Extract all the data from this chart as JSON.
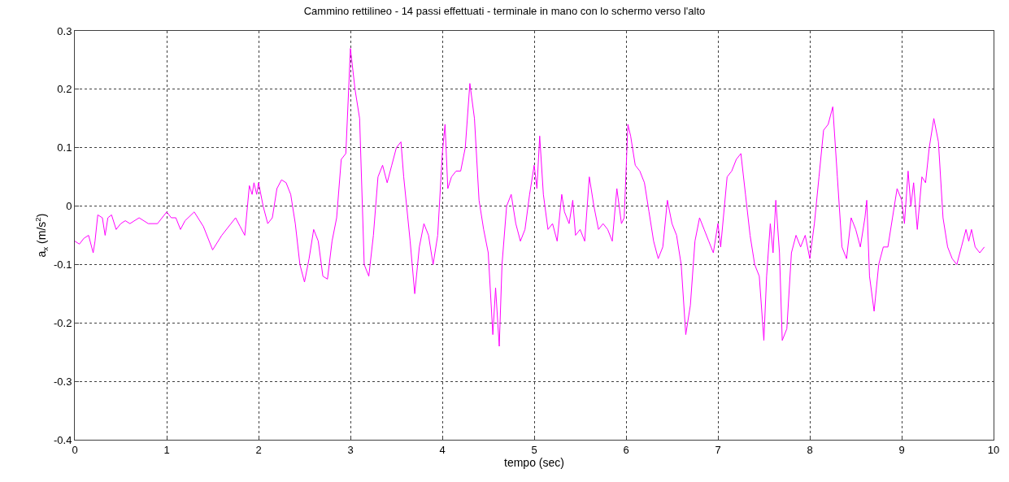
{
  "chart_data": {
    "type": "line",
    "title": "Cammino rettilineo - 14 passi effettuati - terminale in mano con lo schermo verso l'alto",
    "xlabel": "tempo (sec)",
    "ylabel": "a$_{x}$ (m/s$^{2}$)",
    "xlim": [
      0,
      10
    ],
    "xticks": [
      0,
      1,
      2,
      3,
      4,
      5,
      6,
      7,
      8,
      9,
      10
    ],
    "ylim": [
      -0.4,
      0.3
    ],
    "yticks": [
      -0.4,
      -0.3,
      -0.2,
      -0.1,
      0,
      0.1,
      0.2,
      0.3
    ],
    "grid": true,
    "legend": false,
    "line_style": "solid",
    "marker": "none",
    "series": [
      {
        "color": "#ff00ff",
        "x": [
          0,
          0.05,
          0.1,
          0.15,
          0.2,
          0.22,
          0.25,
          0.3,
          0.33,
          0.36,
          0.4,
          0.45,
          0.5,
          0.55,
          0.6,
          0.7,
          0.8,
          0.9,
          1.0,
          1.05,
          1.1,
          1.15,
          1.2,
          1.3,
          1.4,
          1.5,
          1.6,
          1.7,
          1.75,
          1.8,
          1.85,
          1.9,
          1.93,
          1.95,
          1.98,
          2.0,
          2.05,
          2.1,
          2.15,
          2.2,
          2.25,
          2.3,
          2.35,
          2.4,
          2.45,
          2.5,
          2.55,
          2.6,
          2.65,
          2.7,
          2.75,
          2.8,
          2.85,
          2.9,
          2.95,
          3.0,
          3.05,
          3.1,
          3.15,
          3.2,
          3.25,
          3.3,
          3.35,
          3.4,
          3.45,
          3.5,
          3.55,
          3.58,
          3.65,
          3.7,
          3.75,
          3.8,
          3.85,
          3.9,
          3.95,
          4.0,
          4.03,
          4.06,
          4.1,
          4.15,
          4.2,
          4.25,
          4.3,
          4.35,
          4.4,
          4.45,
          4.5,
          4.55,
          4.58,
          4.62,
          4.65,
          4.7,
          4.75,
          4.8,
          4.85,
          4.9,
          4.95,
          5.0,
          5.03,
          5.06,
          5.1,
          5.15,
          5.2,
          5.25,
          5.3,
          5.33,
          5.38,
          5.42,
          5.45,
          5.5,
          5.55,
          5.6,
          5.65,
          5.7,
          5.75,
          5.8,
          5.85,
          5.9,
          5.95,
          5.98,
          6.02,
          6.05,
          6.1,
          6.15,
          6.2,
          6.25,
          6.3,
          6.35,
          6.4,
          6.45,
          6.5,
          6.55,
          6.6,
          6.65,
          6.7,
          6.75,
          6.8,
          6.85,
          6.9,
          6.95,
          7.0,
          7.03,
          7.1,
          7.15,
          7.2,
          7.25,
          7.3,
          7.35,
          7.4,
          7.45,
          7.5,
          7.53,
          7.57,
          7.6,
          7.63,
          7.67,
          7.7,
          7.75,
          7.8,
          7.85,
          7.9,
          7.95,
          8.0,
          8.05,
          8.1,
          8.15,
          8.2,
          8.25,
          8.3,
          8.35,
          8.4,
          8.45,
          8.5,
          8.55,
          8.6,
          8.62,
          8.65,
          8.7,
          8.75,
          8.8,
          8.85,
          8.9,
          8.95,
          9.0,
          9.03,
          9.07,
          9.1,
          9.13,
          9.17,
          9.22,
          9.26,
          9.3,
          9.35,
          9.4,
          9.45,
          9.5,
          9.55,
          9.6,
          9.65,
          9.7,
          9.73,
          9.76,
          9.8,
          9.85,
          9.9
        ],
        "values": [
          -0.06,
          -0.065,
          -0.055,
          -0.05,
          -0.08,
          -0.06,
          -0.015,
          -0.02,
          -0.05,
          -0.02,
          -0.015,
          -0.04,
          -0.03,
          -0.025,
          -0.03,
          -0.02,
          -0.03,
          -0.03,
          -0.01,
          -0.02,
          -0.02,
          -0.04,
          -0.025,
          -0.01,
          -0.035,
          -0.075,
          -0.05,
          -0.03,
          -0.02,
          -0.035,
          -0.05,
          0.035,
          0.02,
          0.04,
          0.02,
          0.04,
          0.0,
          -0.03,
          -0.02,
          0.03,
          0.045,
          0.04,
          0.02,
          -0.03,
          -0.1,
          -0.13,
          -0.09,
          -0.04,
          -0.06,
          -0.12,
          -0.125,
          -0.06,
          -0.02,
          0.08,
          0.09,
          0.27,
          0.2,
          0.15,
          -0.1,
          -0.12,
          -0.05,
          0.05,
          0.07,
          0.04,
          0.07,
          0.1,
          0.11,
          0.05,
          -0.06,
          -0.15,
          -0.07,
          -0.03,
          -0.05,
          -0.1,
          -0.05,
          0.09,
          0.14,
          0.03,
          0.05,
          0.06,
          0.06,
          0.1,
          0.21,
          0.15,
          0.01,
          -0.04,
          -0.08,
          -0.22,
          -0.14,
          -0.24,
          -0.1,
          0.0,
          0.02,
          -0.03,
          -0.06,
          -0.04,
          0.02,
          0.07,
          0.03,
          0.12,
          0.02,
          -0.04,
          -0.03,
          -0.06,
          0.02,
          -0.01,
          -0.03,
          0.01,
          -0.05,
          -0.04,
          -0.06,
          0.05,
          0.0,
          -0.04,
          -0.03,
          -0.04,
          -0.06,
          0.03,
          -0.03,
          -0.02,
          0.14,
          0.12,
          0.07,
          0.06,
          0.04,
          -0.01,
          -0.06,
          -0.09,
          -0.07,
          0.01,
          -0.03,
          -0.05,
          -0.1,
          -0.22,
          -0.17,
          -0.06,
          -0.02,
          -0.04,
          -0.06,
          -0.08,
          -0.03,
          -0.07,
          0.05,
          0.06,
          0.08,
          0.09,
          0.02,
          -0.05,
          -0.1,
          -0.12,
          -0.23,
          -0.12,
          -0.03,
          -0.08,
          0.01,
          -0.08,
          -0.23,
          -0.21,
          -0.08,
          -0.05,
          -0.07,
          -0.05,
          -0.09,
          -0.03,
          0.05,
          0.13,
          0.14,
          0.17,
          0.05,
          -0.07,
          -0.09,
          -0.02,
          -0.04,
          -0.07,
          -0.02,
          0.01,
          -0.12,
          -0.18,
          -0.1,
          -0.07,
          -0.07,
          -0.02,
          0.03,
          0.01,
          -0.03,
          0.06,
          0.0,
          0.04,
          -0.04,
          0.05,
          0.04,
          0.1,
          0.15,
          0.11,
          -0.02,
          -0.07,
          -0.09,
          -0.1,
          -0.07,
          -0.04,
          -0.06,
          -0.04,
          -0.07,
          -0.08,
          -0.07
        ]
      }
    ]
  }
}
